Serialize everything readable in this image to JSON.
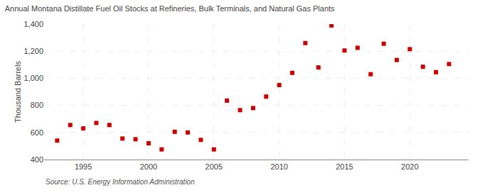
{
  "chart_data": {
    "type": "scatter",
    "title": "Annual Montana Distillate Fuel Oil Stocks at Refineries, Bulk Terminals, and Natural Gas Plants",
    "ylabel": "Thousand Barrels",
    "annotations": [
      "Source: U.S. Energy Information Administration"
    ],
    "x": [
      1993,
      1994,
      1995,
      1996,
      1997,
      1998,
      1999,
      2000,
      2001,
      2002,
      2003,
      2004,
      2005,
      2006,
      2007,
      2008,
      2009,
      2010,
      2011,
      2012,
      2013,
      2014,
      2015,
      2016,
      2017,
      2018,
      2019,
      2020,
      2021,
      2022,
      2023
    ],
    "values": [
      540,
      655,
      630,
      670,
      655,
      555,
      550,
      520,
      475,
      605,
      600,
      545,
      475,
      835,
      765,
      780,
      865,
      950,
      1040,
      1260,
      1080,
      1390,
      1205,
      1225,
      1030,
      1255,
      1135,
      1215,
      1085,
      1045,
      1105
    ],
    "color": "#cc0000",
    "marker": "square",
    "xlim": [
      1992.0,
      2024.5
    ],
    "xticks": [
      1995,
      2000,
      2005,
      2010,
      2015,
      2020
    ],
    "ylim": [
      400,
      1400
    ],
    "yticks": [
      400,
      600,
      800,
      {
        "value": 1000,
        "label": "1,000"
      },
      {
        "value": 1200,
        "label": "1,200"
      },
      {
        "value": 1400,
        "label": "1,400"
      }
    ],
    "grid": true
  }
}
